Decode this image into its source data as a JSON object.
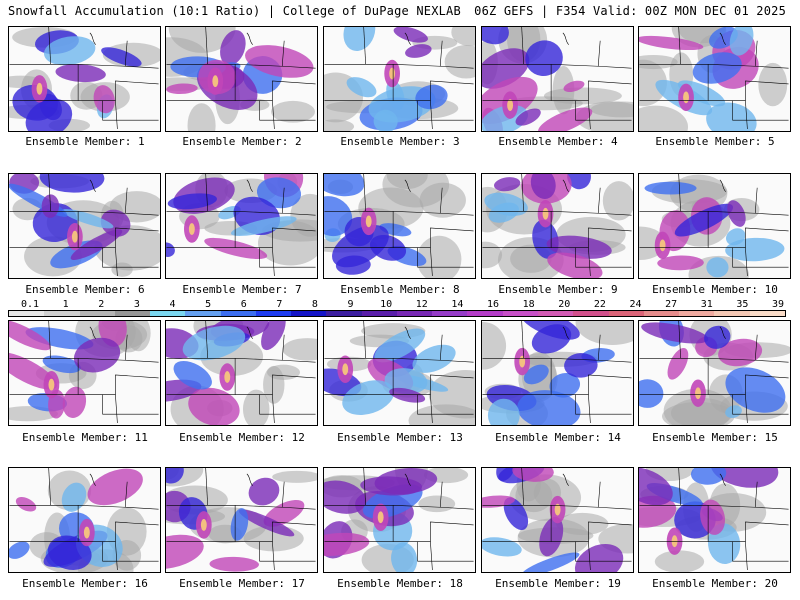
{
  "header": {
    "title_left": "Snowfall Accumulation (10:1 Ratio) | College of DuPage NEXLAB",
    "title_right": "06Z GEFS | F354 Valid: 00Z MON DEC 01 2025"
  },
  "members": [
    {
      "label": "Ensemble Member: 1"
    },
    {
      "label": "Ensemble Member: 2"
    },
    {
      "label": "Ensemble Member: 3"
    },
    {
      "label": "Ensemble Member: 4"
    },
    {
      "label": "Ensemble Member: 5"
    },
    {
      "label": "Ensemble Member: 6"
    },
    {
      "label": "Ensemble Member: 7"
    },
    {
      "label": "Ensemble Member: 8"
    },
    {
      "label": "Ensemble Member: 9"
    },
    {
      "label": "Ensemble Member: 10"
    },
    {
      "label": "Ensemble Member: 11"
    },
    {
      "label": "Ensemble Member: 12"
    },
    {
      "label": "Ensemble Member: 13"
    },
    {
      "label": "Ensemble Member: 14"
    },
    {
      "label": "Ensemble Member: 15"
    },
    {
      "label": "Ensemble Member: 16"
    },
    {
      "label": "Ensemble Member: 17"
    },
    {
      "label": "Ensemble Member: 18"
    },
    {
      "label": "Ensemble Member: 19"
    },
    {
      "label": "Ensemble Member: 20"
    }
  ],
  "colorscale": {
    "ticks": [
      "0.1",
      "1",
      "2",
      "3",
      "4",
      "5",
      "6",
      "7",
      "8",
      "9",
      "10",
      "12",
      "14",
      "16",
      "18",
      "20",
      "22",
      "24",
      "27",
      "31",
      "35",
      "39"
    ],
    "colors": [
      "#e6e6e6",
      "#cfcfcf",
      "#b4b4b4",
      "#969696",
      "#7ad7f0",
      "#64a0f0",
      "#3c6ef0",
      "#1e3cf0",
      "#1414c8",
      "#3c1ea0",
      "#5a1eaa",
      "#7828b4",
      "#963cc8",
      "#b43cc8",
      "#c850c8",
      "#d25ab4",
      "#d2508c",
      "#dc6478",
      "#e68c8c",
      "#f0aaa0",
      "#f5c8b4",
      "#fadcc8"
    ]
  }
}
